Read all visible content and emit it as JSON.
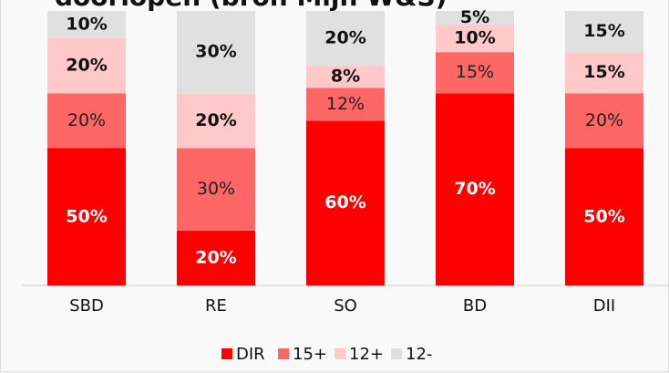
{
  "chart_data": {
    "type": "stacked_bar",
    "title": "doorlopen (bron Mijn W&S)",
    "categories": [
      "SBD",
      "RE",
      "SO",
      "BD",
      "DII"
    ],
    "series": [
      {
        "name": "DIR",
        "color": "#ff0000",
        "values": [
          50,
          20,
          60,
          70,
          50
        ],
        "value_labels": [
          "50%",
          "20%",
          "60%",
          "70%",
          "50%"
        ]
      },
      {
        "name": "15+",
        "color": "#ff6666",
        "values": [
          20,
          30,
          12,
          15,
          20
        ],
        "value_labels": [
          "20%",
          "30%",
          "12%",
          "15%",
          "20%"
        ]
      },
      {
        "name": "12+",
        "color": "#ffc9c9",
        "values": [
          20,
          20,
          8,
          10,
          15
        ],
        "value_labels": [
          "20%",
          "20%",
          "8%",
          "10%",
          "15%"
        ]
      },
      {
        "name": "12-",
        "color": "#e0e0e0",
        "values": [
          10,
          30,
          20,
          5,
          15
        ],
        "value_labels": [
          "10%",
          "30%",
          "20%",
          "5%",
          "15%"
        ]
      }
    ],
    "ylim": [
      0,
      100
    ],
    "legend": "bottom"
  }
}
